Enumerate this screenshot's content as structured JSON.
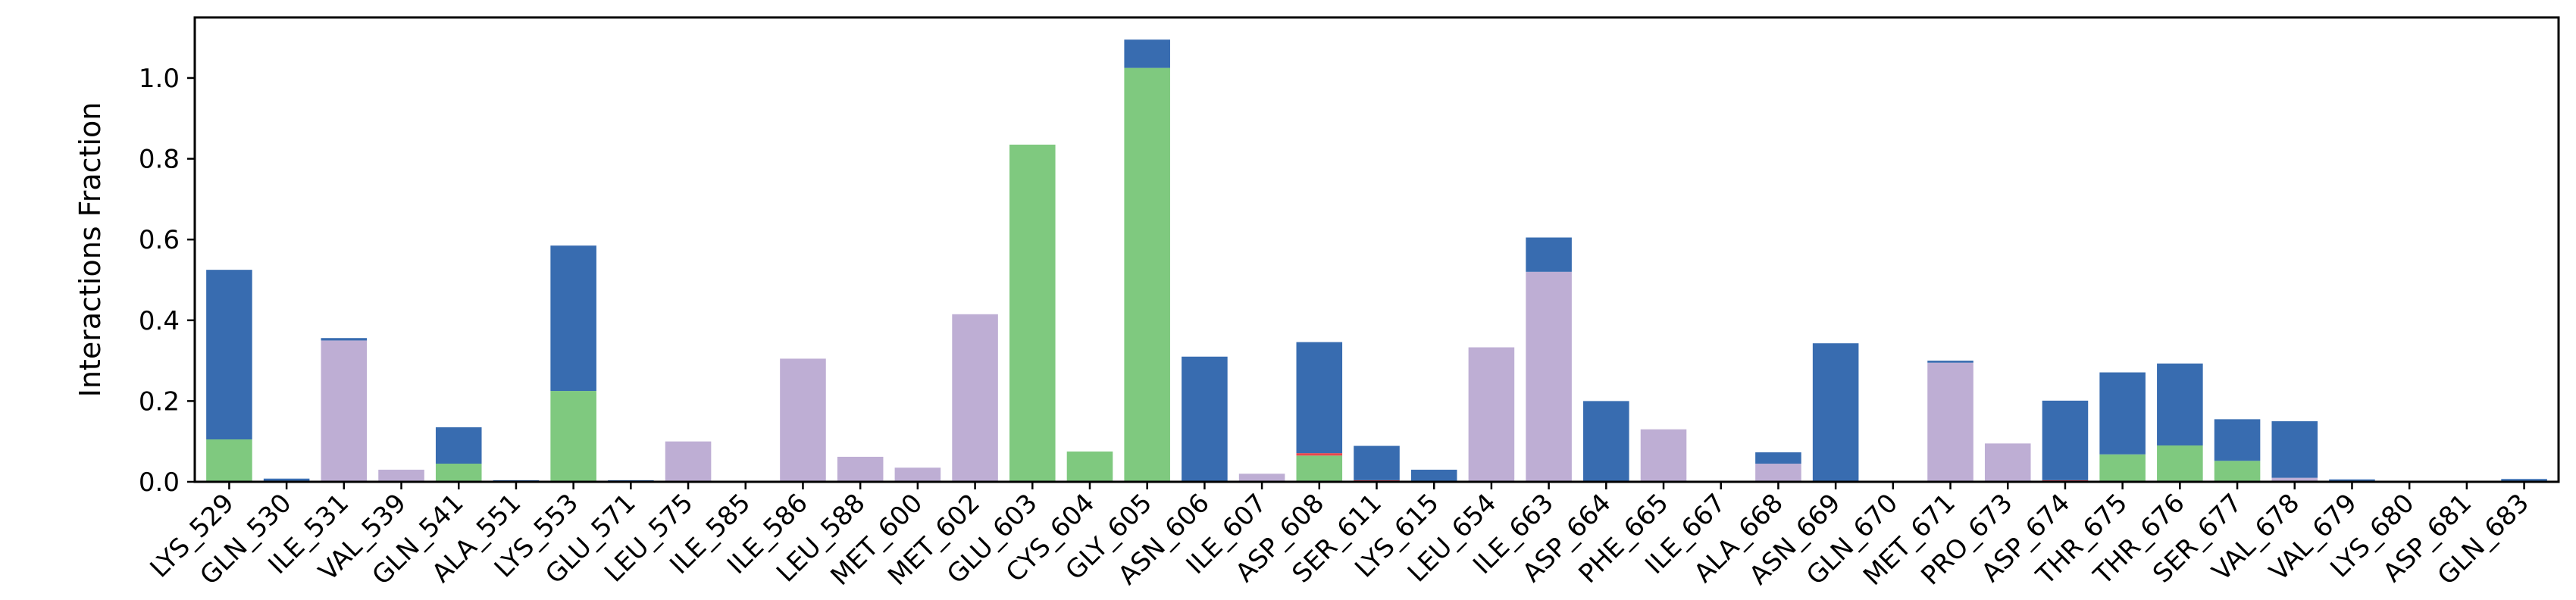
{
  "chart_data": {
    "type": "bar",
    "stacked": true,
    "ylabel": "Interactions Fraction",
    "ylim": [
      0,
      1.15
    ],
    "yticks": [
      "0.0",
      "0.2",
      "0.4",
      "0.6",
      "0.8",
      "1.0"
    ],
    "grid": false,
    "categories": [
      "LYS_529",
      "GLN_530",
      "ILE_531",
      "VAL_539",
      "GLN_541",
      "ALA_551",
      "LYS_553",
      "GLU_571",
      "LEU_575",
      "ILE_585",
      "ILE_586",
      "LEU_588",
      "MET_600",
      "MET_602",
      "GLU_603",
      "CYS_604",
      "GLY_605",
      "ASN_606",
      "ILE_607",
      "ASP_608",
      "SER_611",
      "LYS_615",
      "LEU_654",
      "ILE_663",
      "ASP_664",
      "PHE_665",
      "ILE_667",
      "ALA_668",
      "ASN_669",
      "GLN_670",
      "MET_671",
      "PRO_673",
      "ASP_674",
      "THR_675",
      "THR_676",
      "SER_677",
      "VAL_678",
      "VAL_679",
      "LYS_680",
      "ASP_681",
      "GLN_683"
    ],
    "series": [
      {
        "key": "hbond",
        "color": "#7fc97f",
        "values": [
          0.105,
          0,
          0,
          0,
          0.045,
          0,
          0.225,
          0,
          0,
          0,
          0,
          0,
          0,
          0,
          0.835,
          0.075,
          1.025,
          0,
          0,
          0.065,
          0,
          0,
          0,
          0,
          0,
          0,
          0,
          0,
          0,
          0,
          0,
          0,
          0,
          0.068,
          0.09,
          0.052,
          0,
          0,
          0,
          0,
          0
        ]
      },
      {
        "key": "ionic",
        "color": "#e8474c",
        "values": [
          0,
          0,
          0,
          0,
          0,
          0,
          0,
          0,
          0,
          0,
          0,
          0,
          0,
          0,
          0,
          0,
          0,
          0,
          0,
          0.006,
          0.004,
          0,
          0,
          0,
          0,
          0,
          0,
          0,
          0,
          0,
          0,
          0,
          0.004,
          0,
          0,
          0,
          0,
          0,
          0,
          0,
          0
        ]
      },
      {
        "key": "hydrophobic",
        "color": "#beaed4",
        "values": [
          0,
          0,
          0.35,
          0.03,
          0,
          0,
          0,
          0,
          0.1,
          0,
          0.305,
          0.062,
          0.035,
          0.415,
          0,
          0,
          0,
          0,
          0.02,
          0,
          0,
          0,
          0.333,
          0.52,
          0,
          0.13,
          0,
          0.045,
          0,
          0,
          0.295,
          0.095,
          0,
          0,
          0,
          0,
          0.01,
          0,
          0,
          0,
          0
        ]
      },
      {
        "key": "water_bridge",
        "color": "#386cb0",
        "values": [
          0.42,
          0.008,
          0.006,
          0,
          0.09,
          0.004,
          0.36,
          0.004,
          0,
          0,
          0,
          0,
          0,
          0,
          0,
          0,
          0.07,
          0.31,
          0,
          0.275,
          0.085,
          0.03,
          0,
          0.085,
          0.2,
          0,
          0,
          0.028,
          0.343,
          0,
          0.005,
          0,
          0.197,
          0.203,
          0.203,
          0.103,
          0.14,
          0.006,
          0,
          0,
          0.007
        ]
      }
    ]
  }
}
